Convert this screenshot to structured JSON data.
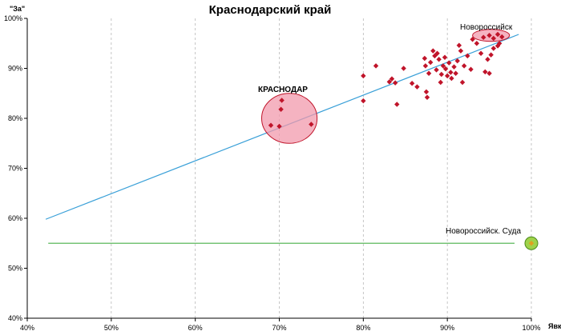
{
  "chart_data": {
    "type": "scatter",
    "title": "Краснодарский край",
    "xlabel": "Явка",
    "ylabel": "\"За\"",
    "xlim": [
      0.4,
      1.0
    ],
    "ylim": [
      0.4,
      1.0
    ],
    "x_ticks": [
      "40%",
      "50%",
      "60%",
      "70%",
      "80%",
      "90%",
      "100%"
    ],
    "y_ticks": [
      "40%",
      "50%",
      "60%",
      "70%",
      "80%",
      "90%",
      "100%"
    ],
    "grid": "vertical dashed",
    "colors": {
      "points": "#c0142a",
      "trend": "#3aa0d8",
      "sudа_line": "#5cb85c",
      "highlight": "#f29aac",
      "outlier": "#9fd24a"
    },
    "points": [
      {
        "x": 0.8,
        "y": 0.885
      },
      {
        "x": 0.815,
        "y": 0.905
      },
      {
        "x": 0.8,
        "y": 0.835
      },
      {
        "x": 0.831,
        "y": 0.873
      },
      {
        "x": 0.834,
        "y": 0.879
      },
      {
        "x": 0.838,
        "y": 0.871
      },
      {
        "x": 0.84,
        "y": 0.828
      },
      {
        "x": 0.848,
        "y": 0.9
      },
      {
        "x": 0.858,
        "y": 0.87
      },
      {
        "x": 0.864,
        "y": 0.863
      },
      {
        "x": 0.873,
        "y": 0.92
      },
      {
        "x": 0.874,
        "y": 0.905
      },
      {
        "x": 0.875,
        "y": 0.853
      },
      {
        "x": 0.876,
        "y": 0.842
      },
      {
        "x": 0.878,
        "y": 0.89
      },
      {
        "x": 0.88,
        "y": 0.912
      },
      {
        "x": 0.883,
        "y": 0.935
      },
      {
        "x": 0.885,
        "y": 0.925
      },
      {
        "x": 0.887,
        "y": 0.897
      },
      {
        "x": 0.888,
        "y": 0.93
      },
      {
        "x": 0.89,
        "y": 0.918
      },
      {
        "x": 0.892,
        "y": 0.872
      },
      {
        "x": 0.893,
        "y": 0.888
      },
      {
        "x": 0.895,
        "y": 0.905
      },
      {
        "x": 0.897,
        "y": 0.922
      },
      {
        "x": 0.898,
        "y": 0.899
      },
      {
        "x": 0.9,
        "y": 0.885
      },
      {
        "x": 0.902,
        "y": 0.911
      },
      {
        "x": 0.904,
        "y": 0.892
      },
      {
        "x": 0.905,
        "y": 0.88
      },
      {
        "x": 0.908,
        "y": 0.903
      },
      {
        "x": 0.91,
        "y": 0.89
      },
      {
        "x": 0.912,
        "y": 0.915
      },
      {
        "x": 0.914,
        "y": 0.946
      },
      {
        "x": 0.916,
        "y": 0.935
      },
      {
        "x": 0.918,
        "y": 0.872
      },
      {
        "x": 0.92,
        "y": 0.905
      },
      {
        "x": 0.924,
        "y": 0.925
      },
      {
        "x": 0.928,
        "y": 0.898
      },
      {
        "x": 0.935,
        "y": 0.95
      },
      {
        "x": 0.94,
        "y": 0.93
      },
      {
        "x": 0.945,
        "y": 0.893
      },
      {
        "x": 0.948,
        "y": 0.918
      },
      {
        "x": 0.95,
        "y": 0.89
      },
      {
        "x": 0.952,
        "y": 0.927
      },
      {
        "x": 0.955,
        "y": 0.94
      },
      {
        "x": 0.96,
        "y": 0.945
      },
      {
        "x": 0.962,
        "y": 0.95
      },
      {
        "x": 0.943,
        "y": 0.962
      },
      {
        "x": 0.95,
        "y": 0.966
      },
      {
        "x": 0.955,
        "y": 0.96
      },
      {
        "x": 0.96,
        "y": 0.968
      },
      {
        "x": 0.965,
        "y": 0.963
      },
      {
        "x": 0.93,
        "y": 0.958
      },
      {
        "x": 0.69,
        "y": 0.786
      },
      {
        "x": 0.7,
        "y": 0.784
      },
      {
        "x": 0.702,
        "y": 0.818
      },
      {
        "x": 0.703,
        "y": 0.836
      },
      {
        "x": 0.738,
        "y": 0.788
      }
    ],
    "trend_line": {
      "x1": 0.422,
      "y1": 0.598,
      "x2": 0.985,
      "y2": 0.968
    },
    "suda_line": {
      "x1": 0.425,
      "y1": 0.55,
      "x2": 0.98,
      "y2": 0.55
    },
    "outlier_point": {
      "x": 1.0,
      "y": 0.55
    },
    "highlights": [
      {
        "cx": 0.712,
        "cy": 0.8,
        "rx": 0.033,
        "ry": 0.05,
        "label": "КРАСНОДАР"
      },
      {
        "cx": 0.952,
        "cy": 0.966,
        "rx": 0.022,
        "ry": 0.012,
        "label": "Новороссийск"
      }
    ],
    "annotations": {
      "krasnodar": "КРАСНОДАР",
      "novorossiysk": "Новороссийск",
      "suda": "Новороссийск. Суда"
    }
  }
}
